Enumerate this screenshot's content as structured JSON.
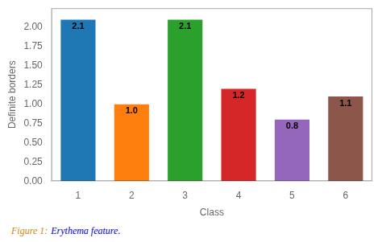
{
  "chart_data": {
    "type": "bar",
    "categories": [
      1,
      2,
      3,
      4,
      5,
      6
    ],
    "values": [
      2.1,
      1.0,
      2.1,
      1.2,
      0.8,
      1.1
    ],
    "value_labels": [
      "2.1",
      "1.0",
      "2.1",
      "1.2",
      "0.8",
      "1.1"
    ],
    "data_labels": true,
    "colors": [
      "#1f77b4",
      "#ff7f0e",
      "#2ca02c",
      "#d62728",
      "#9467bd",
      "#8c564b"
    ],
    "xlabel": "Class",
    "ylabel": "Definite borders",
    "ylim": [
      0,
      2.25
    ],
    "yticks": [
      {
        "value": 0,
        "label": "0.00"
      },
      0.25,
      {
        "value": 0.5,
        "label": "0.50"
      },
      0.75,
      {
        "value": 1,
        "label": "1.00"
      },
      1.25,
      {
        "value": 1.5,
        "label": "1.50"
      },
      1.75,
      {
        "value": 2,
        "label": "2.00"
      }
    ],
    "grid": false,
    "annotations": [
      {
        "text": "Figure 1:",
        "color": "#cc8800"
      },
      {
        "text": "Erythema feature.",
        "color": "#0000cc"
      }
    ]
  }
}
